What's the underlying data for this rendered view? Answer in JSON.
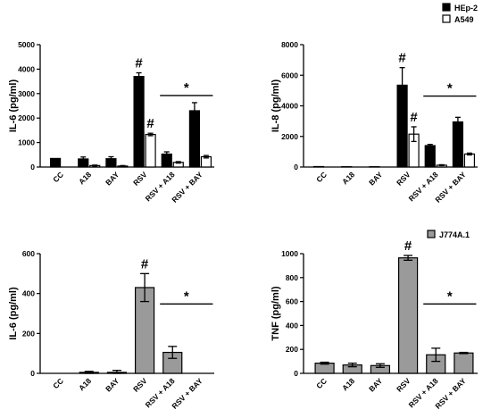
{
  "chart_data": [
    {
      "type": "bar",
      "ylabel": "IL-6 (pg/ml)",
      "ylim": [
        0,
        5000
      ],
      "yticks": [
        0,
        1000,
        2000,
        3000,
        4000,
        5000
      ],
      "categories": [
        "CC",
        "A18",
        "BAY",
        "RSV",
        "RSV + A18",
        "RSV + BAY"
      ],
      "series": [
        {
          "name": "HEp-2",
          "color": "#000000",
          "values": [
            350,
            330,
            340,
            3700,
            530,
            2300
          ],
          "errors": [
            0,
            80,
            80,
            150,
            90,
            330
          ]
        },
        {
          "name": "A549",
          "color": "#ffffff",
          "values": [
            0,
            60,
            40,
            1330,
            190,
            420
          ],
          "errors": [
            0,
            20,
            20,
            50,
            30,
            50
          ]
        }
      ],
      "annotations": [
        {
          "text": "#",
          "category": "RSV",
          "series": 0
        },
        {
          "text": "#",
          "category": "RSV",
          "series": 1
        },
        {
          "text": "*",
          "span": [
            "RSV + A18",
            "RSV + BAY"
          ]
        }
      ]
    },
    {
      "type": "bar",
      "ylabel": "IL-8 (pg/ml)",
      "ylim": [
        0,
        8000
      ],
      "yticks": [
        0,
        2000,
        4000,
        6000,
        8000
      ],
      "categories": [
        "CC",
        "A18",
        "BAY",
        "RSV",
        "RSV + A18",
        "RSV + BAY"
      ],
      "series": [
        {
          "name": "HEp-2",
          "color": "#000000",
          "values": [
            30,
            20,
            20,
            5350,
            1400,
            2950
          ],
          "errors": [
            0,
            0,
            0,
            1150,
            80,
            300
          ]
        },
        {
          "name": "A549",
          "color": "#ffffff",
          "values": [
            0,
            0,
            0,
            2150,
            120,
            850
          ],
          "errors": [
            0,
            0,
            0,
            480,
            30,
            60
          ]
        }
      ],
      "annotations": [
        {
          "text": "#",
          "category": "RSV",
          "series": 0
        },
        {
          "text": "#",
          "category": "RSV",
          "series": 1
        },
        {
          "text": "*",
          "span": [
            "RSV + A18",
            "RSV + BAY"
          ]
        }
      ]
    },
    {
      "type": "bar",
      "ylabel": "IL-6 (pg/ml)",
      "ylim": [
        0,
        600
      ],
      "yticks": [
        0,
        200,
        400,
        600
      ],
      "categories": [
        "CC",
        "A18",
        "BAY",
        "RSV",
        "RSV + A18",
        "RSV + BAY"
      ],
      "series": [
        {
          "name": "J774A.1",
          "color": "#9a9a9a",
          "values": [
            0,
            5,
            5,
            430,
            105,
            0
          ],
          "errors": [
            0,
            5,
            10,
            70,
            30,
            0
          ]
        }
      ],
      "annotations": [
        {
          "text": "#",
          "category": "RSV",
          "series": 0
        },
        {
          "text": "*",
          "span": [
            "RSV + A18",
            "RSV + BAY"
          ]
        }
      ]
    },
    {
      "type": "bar",
      "ylabel": "TNF (pg/ml)",
      "ylim": [
        0,
        1000
      ],
      "yticks": [
        0,
        200,
        400,
        600,
        800,
        1000
      ],
      "categories": [
        "CC",
        "A18",
        "BAY",
        "RSV",
        "RSV + A18",
        "RSV + BAY"
      ],
      "series": [
        {
          "name": "J774A.1",
          "color": "#9a9a9a",
          "values": [
            85,
            70,
            65,
            965,
            155,
            170
          ],
          "errors": [
            8,
            15,
            15,
            20,
            55,
            5
          ]
        }
      ],
      "annotations": [
        {
          "text": "#",
          "category": "RSV",
          "series": 0
        },
        {
          "text": "*",
          "span": [
            "RSV + A18",
            "RSV + BAY"
          ]
        }
      ]
    }
  ],
  "legends": [
    {
      "items": [
        {
          "label": "HEp-2",
          "color": "#000000"
        },
        {
          "label": "A549",
          "color": "#ffffff"
        }
      ]
    },
    {
      "items": [
        {
          "label": "J774A.1",
          "color": "#9a9a9a"
        }
      ]
    }
  ]
}
